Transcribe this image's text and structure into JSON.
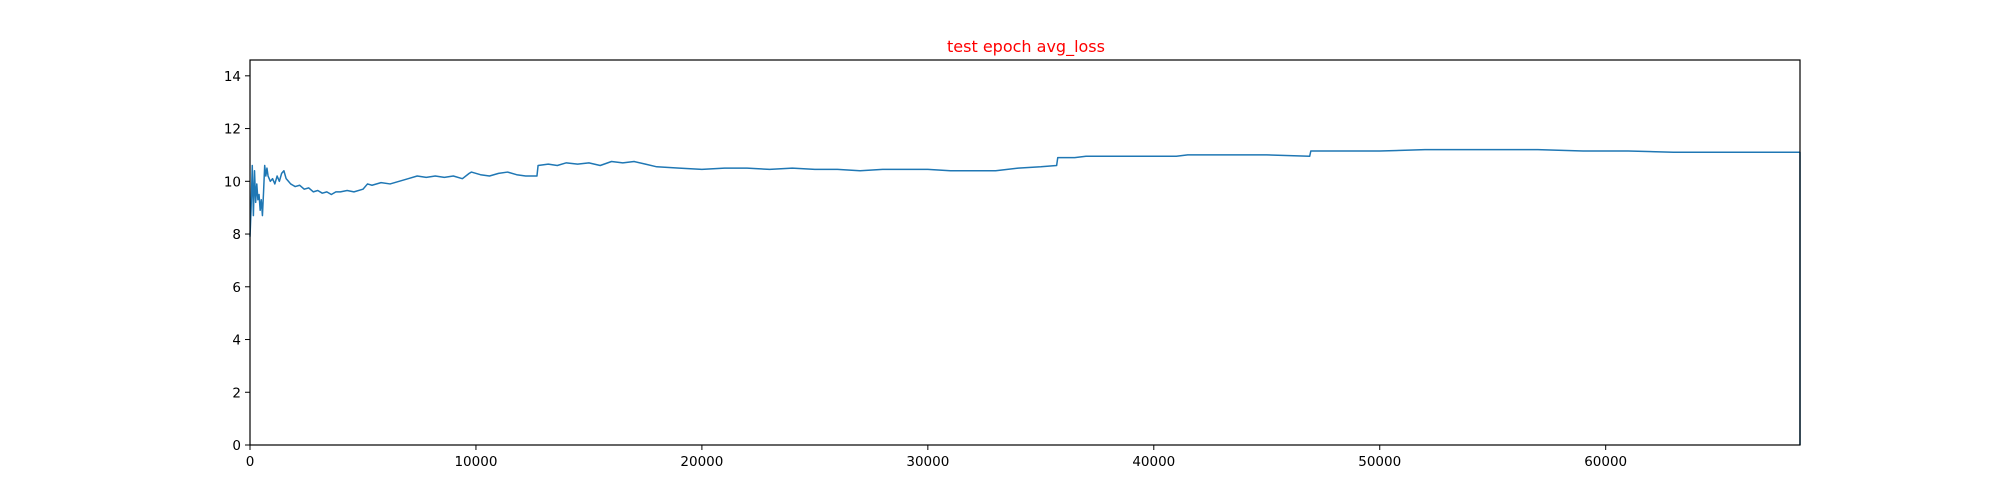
{
  "colors": {
    "title": "#ff0000",
    "line": "#1f77b4",
    "axis": "#000000",
    "background": "#ffffff"
  },
  "chart_data": {
    "type": "line",
    "title": "test epoch avg_loss",
    "xlabel": "",
    "ylabel": "",
    "xlim": [
      0,
      68600
    ],
    "ylim": [
      0,
      14.6
    ],
    "xticks": [
      0,
      10000,
      20000,
      30000,
      40000,
      50000,
      60000
    ],
    "yticks": [
      0,
      2,
      4,
      6,
      8,
      10,
      12,
      14
    ],
    "grid": false,
    "legend": "none",
    "series": [
      {
        "x": [
          0,
          50,
          100,
          150,
          200,
          250,
          300,
          350,
          400,
          450,
          500,
          550,
          600,
          650,
          700,
          750,
          800,
          900,
          1000,
          1100,
          1200,
          1300,
          1400,
          1500,
          1600,
          1700,
          1800,
          1900,
          2000,
          2200,
          2400,
          2600,
          2800,
          3000,
          3200,
          3400,
          3600,
          3800,
          4000,
          4300,
          4600,
          5000,
          5200,
          5400,
          5800,
          6200,
          6600,
          7000,
          7400,
          7800,
          8200,
          8600,
          9000,
          9400,
          9700,
          9800,
          10200,
          10600,
          11000,
          11400,
          11800,
          12200,
          12700,
          12750,
          13200,
          13600,
          14000,
          14500,
          15000,
          15500,
          16000,
          16500,
          17000,
          17500,
          18000,
          19000,
          20000,
          21000,
          22000,
          23000,
          24000,
          25000,
          26000,
          27000,
          28000,
          29000,
          30000,
          31000,
          32000,
          33000,
          34000,
          35000,
          35700,
          35750,
          36500,
          37000,
          38000,
          39000,
          40000,
          41000,
          41500,
          43000,
          45000,
          46900,
          46950,
          48000,
          50000,
          52000,
          53500,
          55000,
          57000,
          59000,
          61000,
          63000,
          65000,
          67000,
          68500,
          68600,
          68600
        ],
        "values": [
          7.9,
          9.0,
          10.6,
          8.7,
          10.4,
          9.2,
          9.9,
          9.3,
          9.5,
          8.9,
          9.3,
          8.7,
          9.6,
          10.6,
          10.2,
          10.5,
          10.2,
          10.0,
          10.1,
          9.9,
          10.2,
          10.0,
          10.3,
          10.4,
          10.1,
          10.0,
          9.9,
          9.85,
          9.8,
          9.85,
          9.7,
          9.75,
          9.6,
          9.65,
          9.55,
          9.6,
          9.5,
          9.6,
          9.6,
          9.65,
          9.6,
          9.7,
          9.9,
          9.85,
          9.95,
          9.9,
          10.0,
          10.1,
          10.2,
          10.15,
          10.2,
          10.15,
          10.2,
          10.1,
          10.3,
          10.35,
          10.25,
          10.2,
          10.3,
          10.35,
          10.25,
          10.2,
          10.2,
          10.6,
          10.65,
          10.6,
          10.7,
          10.65,
          10.7,
          10.6,
          10.75,
          10.7,
          10.75,
          10.65,
          10.55,
          10.5,
          10.45,
          10.5,
          10.5,
          10.45,
          10.5,
          10.45,
          10.45,
          10.4,
          10.45,
          10.45,
          10.45,
          10.4,
          10.4,
          10.4,
          10.5,
          10.55,
          10.6,
          10.9,
          10.9,
          10.95,
          10.95,
          10.95,
          10.95,
          10.95,
          11.0,
          11.0,
          11.0,
          10.95,
          11.15,
          11.15,
          11.15,
          11.2,
          11.2,
          11.2,
          11.2,
          11.15,
          11.15,
          11.1,
          11.1,
          11.1,
          11.1,
          11.1,
          0
        ]
      }
    ]
  }
}
